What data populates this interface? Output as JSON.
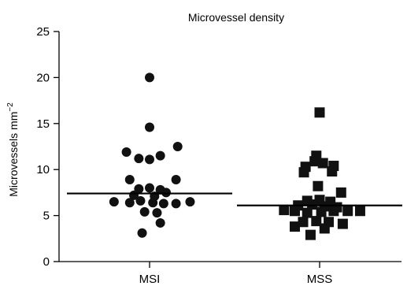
{
  "chart_data": {
    "type": "scatter",
    "title": "Microvessel density",
    "ylabel": "Microvessels mm",
    "ylabel_sup": "−2",
    "ylim": [
      0,
      25
    ],
    "yticks": [
      "0",
      "5",
      "10",
      "15",
      "20",
      "25"
    ],
    "categories": [
      "MSI",
      "MSS"
    ],
    "series": [
      {
        "category": "MSI",
        "marker": "circle",
        "median": 7.4,
        "points": [
          {
            "x": 0.0,
            "y": 20.0
          },
          {
            "x": 0.0,
            "y": 14.6
          },
          {
            "x": -0.28,
            "y": 11.9
          },
          {
            "x": -0.13,
            "y": 11.2
          },
          {
            "x": 0.0,
            "y": 11.1
          },
          {
            "x": 0.13,
            "y": 11.5
          },
          {
            "x": 0.34,
            "y": 12.5
          },
          {
            "x": -0.24,
            "y": 8.9
          },
          {
            "x": 0.32,
            "y": 8.9
          },
          {
            "x": -0.13,
            "y": 7.9
          },
          {
            "x": 0.0,
            "y": 8.0
          },
          {
            "x": 0.13,
            "y": 7.8
          },
          {
            "x": 0.2,
            "y": 7.5
          },
          {
            "x": -0.19,
            "y": 7.2
          },
          {
            "x": 0.06,
            "y": 7.1
          },
          {
            "x": -0.43,
            "y": 6.5
          },
          {
            "x": -0.24,
            "y": 6.4
          },
          {
            "x": -0.11,
            "y": 6.6
          },
          {
            "x": 0.04,
            "y": 6.4
          },
          {
            "x": 0.17,
            "y": 6.3
          },
          {
            "x": 0.32,
            "y": 6.3
          },
          {
            "x": 0.49,
            "y": 6.5
          },
          {
            "x": -0.06,
            "y": 5.4
          },
          {
            "x": 0.09,
            "y": 5.3
          },
          {
            "x": 0.13,
            "y": 4.2
          },
          {
            "x": -0.09,
            "y": 3.1
          }
        ]
      },
      {
        "category": "MSS",
        "marker": "square",
        "median": 6.1,
        "points": [
          {
            "x": 0.0,
            "y": 16.2
          },
          {
            "x": -0.04,
            "y": 11.5
          },
          {
            "x": -0.06,
            "y": 10.9
          },
          {
            "x": 0.04,
            "y": 10.7
          },
          {
            "x": -0.17,
            "y": 10.3
          },
          {
            "x": 0.17,
            "y": 10.4
          },
          {
            "x": -0.19,
            "y": 9.7
          },
          {
            "x": 0.15,
            "y": 9.8
          },
          {
            "x": -0.02,
            "y": 8.2
          },
          {
            "x": 0.26,
            "y": 7.5
          },
          {
            "x": -0.15,
            "y": 6.6
          },
          {
            "x": 0.0,
            "y": 6.7
          },
          {
            "x": 0.13,
            "y": 6.5
          },
          {
            "x": -0.26,
            "y": 6.1
          },
          {
            "x": -0.09,
            "y": 6.2
          },
          {
            "x": 0.06,
            "y": 6.0
          },
          {
            "x": 0.21,
            "y": 5.9
          },
          {
            "x": -0.43,
            "y": 5.6
          },
          {
            "x": -0.3,
            "y": 5.5
          },
          {
            "x": -0.15,
            "y": 5.3
          },
          {
            "x": 0.02,
            "y": 5.4
          },
          {
            "x": 0.17,
            "y": 5.5
          },
          {
            "x": 0.34,
            "y": 5.5
          },
          {
            "x": 0.49,
            "y": 5.5
          },
          {
            "x": -0.2,
            "y": 4.3
          },
          {
            "x": -0.04,
            "y": 4.4
          },
          {
            "x": 0.11,
            "y": 4.3
          },
          {
            "x": 0.28,
            "y": 4.1
          },
          {
            "x": -0.3,
            "y": 3.8
          },
          {
            "x": 0.06,
            "y": 3.6
          },
          {
            "x": -0.11,
            "y": 2.9
          }
        ]
      }
    ],
    "colors": {
      "marker": "#111111",
      "median": "#000000",
      "axis": "#000000"
    }
  }
}
